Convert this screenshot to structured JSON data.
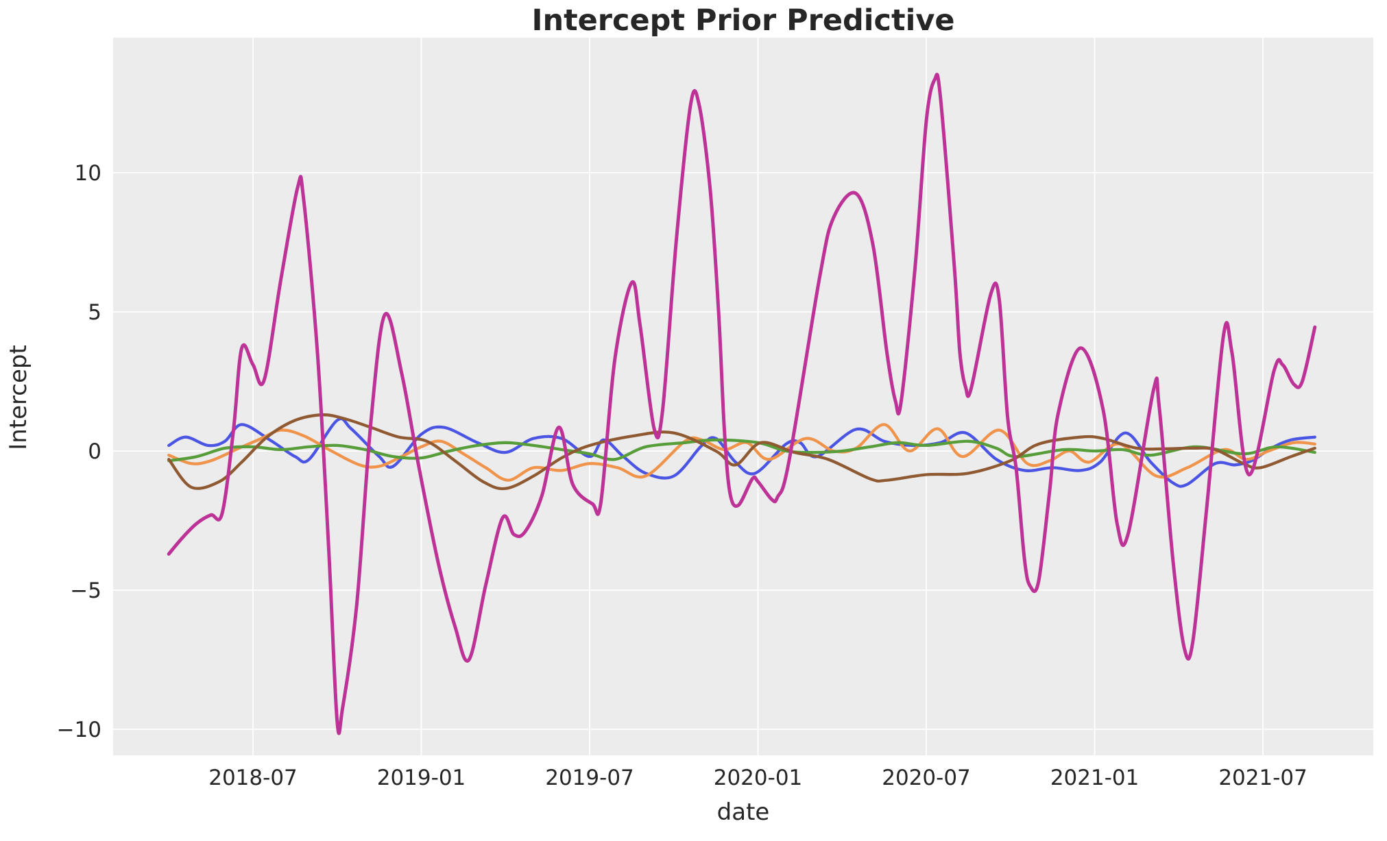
{
  "title": "Intercept Prior Predictive",
  "axes": {
    "xlabel": "date",
    "ylabel": "Intercept",
    "x_ticks": [
      {
        "m": 3,
        "label": "2018-07"
      },
      {
        "m": 9,
        "label": "2019-01"
      },
      {
        "m": 15,
        "label": "2019-07"
      },
      {
        "m": 21,
        "label": "2020-01"
      },
      {
        "m": 27,
        "label": "2020-07"
      },
      {
        "m": 33,
        "label": "2021-01"
      },
      {
        "m": 39,
        "label": "2021-07"
      }
    ],
    "y_ticks": [
      {
        "v": 10,
        "label": "10"
      },
      {
        "v": 5,
        "label": "5"
      },
      {
        "v": 0,
        "label": "0"
      },
      {
        "v": -5,
        "label": "−5"
      },
      {
        "v": -10,
        "label": "−10"
      }
    ]
  },
  "colors": {
    "figure_background": "#ffffff",
    "plot_background": "#ececec",
    "gridline": "#ffffff",
    "text": "#262626"
  },
  "chart_data": {
    "type": "line",
    "title": "Intercept Prior Predictive",
    "xlabel": "date",
    "ylabel": "Intercept",
    "x_unit": "decimal months since 2018-04 (0 = 2018-04, 41 = 2021-09)",
    "x_range_dates": [
      "2018-04",
      "2021-09"
    ],
    "ylim": [
      -10.9,
      14.8
    ],
    "grid": true,
    "legend_position": "none",
    "series": [
      {
        "name": "prior draw 1 (blue)",
        "color": "#4b55e3",
        "width": 4.3,
        "points": [
          [
            0,
            0.2
          ],
          [
            0.6,
            0.5
          ],
          [
            1.4,
            0.2
          ],
          [
            2,
            0.35
          ],
          [
            2.6,
            0.95
          ],
          [
            3.6,
            0.4
          ],
          [
            4.5,
            -0.2
          ],
          [
            5,
            -0.3
          ],
          [
            6,
            1.1
          ],
          [
            6.5,
            0.8
          ],
          [
            7.5,
            -0.2
          ],
          [
            8,
            -0.55
          ],
          [
            9,
            0.6
          ],
          [
            9.8,
            0.85
          ],
          [
            11,
            0.3
          ],
          [
            12,
            -0.05
          ],
          [
            13,
            0.45
          ],
          [
            14,
            0.45
          ],
          [
            15,
            -0.2
          ],
          [
            15.5,
            0.4
          ],
          [
            16.2,
            -0.2
          ],
          [
            17,
            -0.8
          ],
          [
            18,
            -0.9
          ],
          [
            19,
            0.2
          ],
          [
            19.5,
            0.45
          ],
          [
            20.2,
            -0.4
          ],
          [
            20.9,
            -0.8
          ],
          [
            22,
            0.25
          ],
          [
            22.5,
            0.3
          ],
          [
            23.1,
            -0.2
          ],
          [
            24.5,
            0.78
          ],
          [
            25.5,
            0.35
          ],
          [
            26.5,
            0.2
          ],
          [
            27.5,
            0.3
          ],
          [
            28.4,
            0.65
          ],
          [
            29.5,
            -0.3
          ],
          [
            30.5,
            -0.7
          ],
          [
            31.5,
            -0.6
          ],
          [
            32.5,
            -0.7
          ],
          [
            33.2,
            -0.4
          ],
          [
            34.1,
            0.65
          ],
          [
            35,
            -0.4
          ],
          [
            35.8,
            -1.15
          ],
          [
            36.3,
            -1.2
          ],
          [
            37.3,
            -0.45
          ],
          [
            38,
            -0.5
          ],
          [
            38.6,
            -0.35
          ],
          [
            39.3,
            0.1
          ],
          [
            40,
            0.4
          ],
          [
            40.85,
            0.5
          ]
        ]
      },
      {
        "name": "prior draw 2 (orange)",
        "color": "#f0934b",
        "width": 4.3,
        "points": [
          [
            0,
            -0.15
          ],
          [
            0.8,
            -0.45
          ],
          [
            1.5,
            -0.35
          ],
          [
            2.5,
            0.1
          ],
          [
            3.3,
            0.45
          ],
          [
            4,
            0.75
          ],
          [
            4.8,
            0.55
          ],
          [
            5.8,
            0
          ],
          [
            6.8,
            -0.5
          ],
          [
            7.5,
            -0.55
          ],
          [
            8.3,
            -0.2
          ],
          [
            9,
            0.15
          ],
          [
            9.7,
            0.35
          ],
          [
            10.5,
            -0.1
          ],
          [
            11.3,
            -0.6
          ],
          [
            12.1,
            -1.05
          ],
          [
            13,
            -0.6
          ],
          [
            14,
            -0.7
          ],
          [
            15,
            -0.45
          ],
          [
            16,
            -0.6
          ],
          [
            17,
            -0.9
          ],
          [
            18.4,
            0.35
          ],
          [
            19,
            0.4
          ],
          [
            19.8,
            0.05
          ],
          [
            20.6,
            0.3
          ],
          [
            21.4,
            -0.3
          ],
          [
            22.7,
            0.45
          ],
          [
            23.7,
            0
          ],
          [
            24.5,
            0.1
          ],
          [
            25.5,
            0.95
          ],
          [
            26.4,
            0
          ],
          [
            27.4,
            0.8
          ],
          [
            28.3,
            -0.2
          ],
          [
            29.6,
            0.75
          ],
          [
            30.6,
            -0.45
          ],
          [
            31.4,
            -0.35
          ],
          [
            32.1,
            0
          ],
          [
            32.8,
            -0.4
          ],
          [
            33.9,
            0.25
          ],
          [
            35.2,
            -0.9
          ],
          [
            36.3,
            -0.6
          ],
          [
            37.6,
            0.05
          ],
          [
            38.4,
            -0.3
          ],
          [
            39.2,
            0
          ],
          [
            40.1,
            0.3
          ],
          [
            40.85,
            0.25
          ]
        ]
      },
      {
        "name": "prior draw 3 (green)",
        "color": "#579e3b",
        "width": 4.3,
        "points": [
          [
            0,
            -0.35
          ],
          [
            1,
            -0.2
          ],
          [
            2,
            0.1
          ],
          [
            3,
            0.15
          ],
          [
            4,
            0.05
          ],
          [
            5,
            0.15
          ],
          [
            6,
            0.2
          ],
          [
            7,
            0.05
          ],
          [
            8,
            -0.2
          ],
          [
            9,
            -0.25
          ],
          [
            10,
            0
          ],
          [
            11,
            0.2
          ],
          [
            12,
            0.3
          ],
          [
            13,
            0.2
          ],
          [
            14,
            0.05
          ],
          [
            15,
            -0.1
          ],
          [
            15.9,
            -0.3
          ],
          [
            17,
            0.15
          ],
          [
            18.4,
            0.3
          ],
          [
            19.5,
            0.4
          ],
          [
            21,
            0.3
          ],
          [
            22,
            0
          ],
          [
            23,
            -0.05
          ],
          [
            24,
            0
          ],
          [
            25,
            0.15
          ],
          [
            26,
            0.3
          ],
          [
            27,
            0.2
          ],
          [
            28.5,
            0.35
          ],
          [
            29.5,
            0.1
          ],
          [
            30.2,
            -0.2
          ],
          [
            31.9,
            0.05
          ],
          [
            33,
            0
          ],
          [
            34,
            0.05
          ],
          [
            35,
            -0.15
          ],
          [
            36.6,
            0.15
          ],
          [
            38.3,
            -0.1
          ],
          [
            39.5,
            0.15
          ],
          [
            40.85,
            -0.05
          ]
        ]
      },
      {
        "name": "prior draw 4 (brown)",
        "color": "#8f5a32",
        "width": 4.3,
        "points": [
          [
            0,
            -0.3
          ],
          [
            0.8,
            -1.3
          ],
          [
            1.8,
            -1.1
          ],
          [
            2.6,
            -0.4
          ],
          [
            3.5,
            0.5
          ],
          [
            4.5,
            1.1
          ],
          [
            5.5,
            1.3
          ],
          [
            6.3,
            1.15
          ],
          [
            7.2,
            0.85
          ],
          [
            8.2,
            0.5
          ],
          [
            9.2,
            0.35
          ],
          [
            10.2,
            -0.35
          ],
          [
            11.2,
            -1.1
          ],
          [
            12,
            -1.35
          ],
          [
            13,
            -0.9
          ],
          [
            14,
            -0.25
          ],
          [
            15,
            0.2
          ],
          [
            16.6,
            0.55
          ],
          [
            18,
            0.65
          ],
          [
            19.5,
            0
          ],
          [
            20.2,
            -0.5
          ],
          [
            21.1,
            0.3
          ],
          [
            22.3,
            -0.05
          ],
          [
            23.5,
            -0.3
          ],
          [
            25,
            -1
          ],
          [
            25.6,
            -1.05
          ],
          [
            27,
            -0.85
          ],
          [
            28.5,
            -0.8
          ],
          [
            30,
            -0.35
          ],
          [
            31,
            0.25
          ],
          [
            32.5,
            0.5
          ],
          [
            33.3,
            0.45
          ],
          [
            34.5,
            0.1
          ],
          [
            35.5,
            0.08
          ],
          [
            36.5,
            0.1
          ],
          [
            37.3,
            0.05
          ],
          [
            38.3,
            -0.45
          ],
          [
            38.9,
            -0.6
          ],
          [
            40,
            -0.2
          ],
          [
            40.85,
            0.1
          ]
        ]
      },
      {
        "name": "prior draw 5 (magenta)",
        "color": "#bd3296",
        "width": 5,
        "points": [
          [
            0,
            -3.7
          ],
          [
            0.5,
            -3.1
          ],
          [
            1,
            -2.6
          ],
          [
            1.5,
            -2.3
          ],
          [
            1.9,
            -2.25
          ],
          [
            2.3,
            0.7
          ],
          [
            2.6,
            3.7
          ],
          [
            3,
            3.1
          ],
          [
            3.4,
            2.55
          ],
          [
            4,
            6.2
          ],
          [
            4.6,
            9.5
          ],
          [
            4.8,
            9.1
          ],
          [
            5.3,
            3.5
          ],
          [
            5.7,
            -3.5
          ],
          [
            6,
            -9.7
          ],
          [
            6.2,
            -9.2
          ],
          [
            6.7,
            -5.5
          ],
          [
            7.2,
            1
          ],
          [
            7.7,
            4.9
          ],
          [
            8.3,
            2.8
          ],
          [
            8.9,
            -0.5
          ],
          [
            9.6,
            -4
          ],
          [
            10.2,
            -6.3
          ],
          [
            10.7,
            -7.5
          ],
          [
            11.3,
            -4.8
          ],
          [
            11.9,
            -2.4
          ],
          [
            12.3,
            -3
          ],
          [
            12.7,
            -2.9
          ],
          [
            13.3,
            -1.6
          ],
          [
            13.9,
            0.85
          ],
          [
            14.4,
            -1.2
          ],
          [
            15.1,
            -1.9
          ],
          [
            15.4,
            -1.85
          ],
          [
            15.9,
            3.3
          ],
          [
            16.5,
            6.05
          ],
          [
            16.8,
            4.5
          ],
          [
            17.3,
            0.8
          ],
          [
            17.6,
            1.45
          ],
          [
            18.1,
            7.7
          ],
          [
            18.6,
            12.45
          ],
          [
            18.9,
            12.45
          ],
          [
            19.3,
            9.35
          ],
          [
            19.6,
            4.95
          ],
          [
            19.8,
            0.8
          ],
          [
            20,
            -1.5
          ],
          [
            20.3,
            -1.95
          ],
          [
            20.8,
            -1
          ],
          [
            21,
            -1.1
          ],
          [
            21.5,
            -1.75
          ],
          [
            21.7,
            -1.65
          ],
          [
            22.1,
            -0.4
          ],
          [
            23.2,
            6.25
          ],
          [
            23.7,
            8.4
          ],
          [
            24.5,
            9.25
          ],
          [
            25.1,
            7.4
          ],
          [
            25.6,
            3.5
          ],
          [
            25.9,
            1.8
          ],
          [
            26.1,
            1.75
          ],
          [
            26.6,
            6.6
          ],
          [
            27,
            11.85
          ],
          [
            27.3,
            13.35
          ],
          [
            27.5,
            12.75
          ],
          [
            28,
            6.6
          ],
          [
            28.2,
            3.5
          ],
          [
            28.4,
            2.3
          ],
          [
            28.6,
            2.25
          ],
          [
            29.3,
            5.65
          ],
          [
            29.6,
            5.45
          ],
          [
            29.9,
            1.2
          ],
          [
            30.2,
            -0.6
          ],
          [
            30.5,
            -3.9
          ],
          [
            30.7,
            -4.85
          ],
          [
            31,
            -4.7
          ],
          [
            31.4,
            -1.4
          ],
          [
            31.7,
            1.35
          ],
          [
            32.5,
            3.7
          ],
          [
            33.3,
            1.5
          ],
          [
            33.8,
            -2.6
          ],
          [
            34.2,
            -2.95
          ],
          [
            35.1,
            2.2
          ],
          [
            35.3,
            1.6
          ],
          [
            35.8,
            -4
          ],
          [
            36.2,
            -7.1
          ],
          [
            36.5,
            -6.85
          ],
          [
            37,
            -2
          ],
          [
            37.6,
            4.2
          ],
          [
            37.9,
            3.5
          ],
          [
            38.5,
            -0.85
          ],
          [
            39.4,
            2.9
          ],
          [
            39.7,
            3.1
          ],
          [
            40.1,
            2.4
          ],
          [
            40.4,
            2.5
          ],
          [
            40.85,
            4.45
          ]
        ]
      }
    ]
  }
}
